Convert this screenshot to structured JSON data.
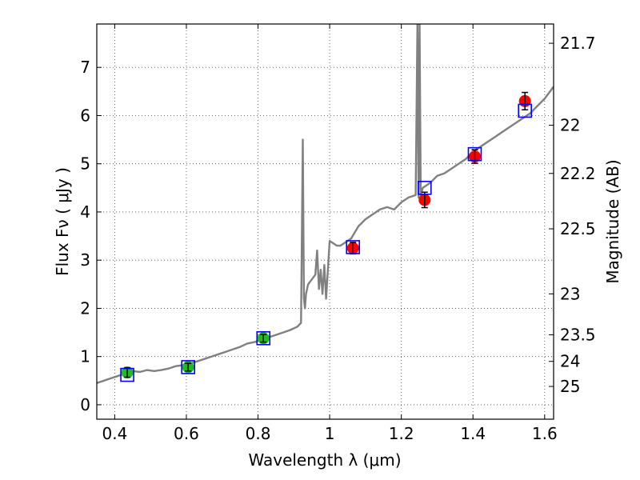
{
  "chart_data": {
    "type": "line",
    "title": "",
    "xlabel": "Wavelength  λ (μm)",
    "ylabel": "Flux  Fν  ( μJy )",
    "y2label": "Magnitude (AB)",
    "xlim": [
      0.35,
      1.625
    ],
    "ylim": [
      -0.3,
      7.9
    ],
    "grid": true,
    "x_ticks": [
      0.4,
      0.6,
      0.8,
      1.0,
      1.2,
      1.4,
      1.6
    ],
    "x_tick_labels": [
      "0.4",
      "0.6",
      "0.8",
      "1",
      "1.2",
      "1.4",
      "1.6"
    ],
    "y_ticks": [
      0,
      1,
      2,
      3,
      4,
      5,
      6,
      7
    ],
    "y_tick_labels": [
      "0",
      "1",
      "2",
      "3",
      "4",
      "5",
      "6",
      "7"
    ],
    "y2_ticks": [
      {
        "label": "21.7",
        "flux": 7.5
      },
      {
        "label": "22",
        "flux": 5.8
      },
      {
        "label": "22.2",
        "flux": 4.8
      },
      {
        "label": "22.5",
        "flux": 3.65
      },
      {
        "label": "23",
        "flux": 2.3
      },
      {
        "label": "23.5",
        "flux": 1.45
      },
      {
        "label": "24",
        "flux": 0.9
      },
      {
        "label": "25",
        "flux": 0.38
      }
    ],
    "series": [
      {
        "kind": "spectrum",
        "color": "#808080",
        "x": [
          0.35,
          0.37,
          0.39,
          0.41,
          0.43,
          0.45,
          0.47,
          0.49,
          0.51,
          0.53,
          0.55,
          0.57,
          0.59,
          0.61,
          0.63,
          0.65,
          0.67,
          0.69,
          0.71,
          0.73,
          0.75,
          0.77,
          0.79,
          0.81,
          0.83,
          0.85,
          0.87,
          0.89,
          0.91,
          0.92,
          0.925,
          0.928,
          0.931,
          0.934,
          0.94,
          0.95,
          0.96,
          0.965,
          0.97,
          0.975,
          0.98,
          0.985,
          0.99,
          1.0,
          1.01,
          1.02,
          1.03,
          1.04,
          1.05,
          1.06,
          1.08,
          1.1,
          1.12,
          1.14,
          1.16,
          1.18,
          1.2,
          1.22,
          1.24,
          1.245,
          1.248,
          1.251,
          1.254,
          1.26,
          1.28,
          1.3,
          1.32,
          1.34,
          1.36,
          1.38,
          1.4,
          1.42,
          1.44,
          1.46,
          1.48,
          1.5,
          1.52,
          1.54,
          1.56,
          1.58,
          1.6,
          1.625
        ],
        "y": [
          0.45,
          0.5,
          0.55,
          0.6,
          0.65,
          0.7,
          0.68,
          0.72,
          0.7,
          0.72,
          0.75,
          0.8,
          0.82,
          0.85,
          0.9,
          0.95,
          1.0,
          1.05,
          1.1,
          1.15,
          1.2,
          1.27,
          1.3,
          1.35,
          1.4,
          1.45,
          1.5,
          1.55,
          1.62,
          1.7,
          5.5,
          2.2,
          2.0,
          2.3,
          2.5,
          2.6,
          2.7,
          3.2,
          2.4,
          2.8,
          2.3,
          2.9,
          2.2,
          3.4,
          3.35,
          3.3,
          3.3,
          3.35,
          3.4,
          3.45,
          3.7,
          3.85,
          3.95,
          4.05,
          4.1,
          4.05,
          4.2,
          4.3,
          4.35,
          7.9,
          4.3,
          7.9,
          4.35,
          4.5,
          4.6,
          4.75,
          4.8,
          4.9,
          5.0,
          5.1,
          5.25,
          5.35,
          5.45,
          5.55,
          5.65,
          5.75,
          5.85,
          5.95,
          6.05,
          6.2,
          6.35,
          6.6
        ]
      },
      {
        "kind": "model_photometry",
        "marker": "open-square",
        "color": "#0000ff",
        "x": [
          0.435,
          0.605,
          0.815,
          1.065,
          1.265,
          1.405,
          1.545
        ],
        "y": [
          0.62,
          0.78,
          1.38,
          3.27,
          4.5,
          5.2,
          6.1
        ]
      },
      {
        "kind": "observed_optical",
        "marker": "filled-circle",
        "color": "#22bb22",
        "x": [
          0.435,
          0.605,
          0.815
        ],
        "y": [
          0.67,
          0.78,
          1.38
        ],
        "err": [
          0.1,
          0.08,
          0.08
        ]
      },
      {
        "kind": "observed_nir",
        "marker": "filled-circle",
        "color": "#ff0000",
        "x": [
          1.065,
          1.265,
          1.405,
          1.545
        ],
        "y": [
          3.25,
          4.25,
          5.15,
          6.3
        ],
        "err": [
          0.12,
          0.16,
          0.14,
          0.18
        ]
      }
    ]
  }
}
